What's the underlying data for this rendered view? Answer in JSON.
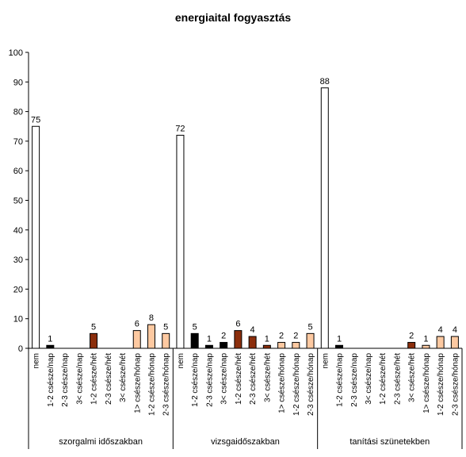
{
  "chart_data": {
    "type": "bar",
    "title": "energiaital fogyasztás",
    "xlabel": "",
    "ylabel": "",
    "ylim": [
      0,
      100
    ],
    "yticks": [
      0,
      10,
      20,
      30,
      40,
      50,
      60,
      70,
      80,
      90,
      100
    ],
    "grid": false,
    "legend": "none",
    "categories": [
      "nem",
      "1-2 csésze/nap",
      "2-3 csésze/nap",
      "3< csésze/nap",
      "1-2 csésze/hét",
      "2-3 csésze/hét",
      "3< csésze/hét",
      "1> csésze/hónap",
      "1-2 csésze/hónap",
      "2-3 csésze/hónap"
    ],
    "colors": [
      "#ffffff",
      "#000000",
      "#000000",
      "#000000",
      "#8b2e0c",
      "#8b2e0c",
      "#8b2e0c",
      "#fdc9a1",
      "#fdc9a1",
      "#fdc9a1"
    ],
    "series": [
      {
        "name": "szorgalmi időszakban",
        "values": [
          75,
          1,
          0,
          0,
          5,
          0,
          0,
          6,
          8,
          5
        ]
      },
      {
        "name": "vizsgaidőszakban",
        "values": [
          72,
          5,
          1,
          2,
          6,
          4,
          1,
          2,
          2,
          5
        ]
      },
      {
        "name": "tanítási szünetekben",
        "values": [
          88,
          1,
          0,
          0,
          0,
          0,
          2,
          1,
          4,
          4
        ]
      }
    ]
  }
}
